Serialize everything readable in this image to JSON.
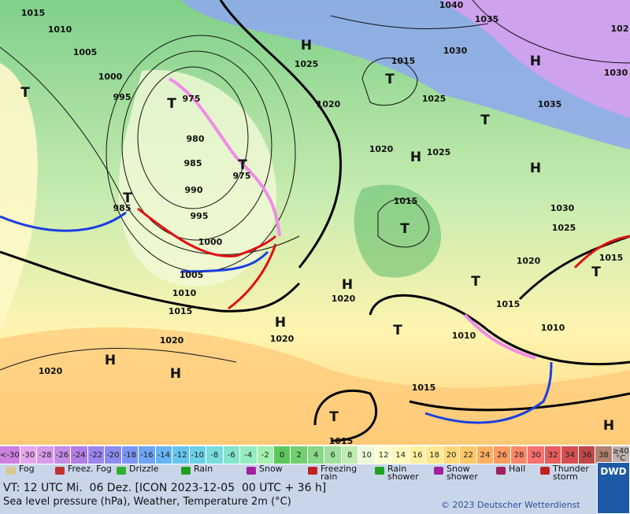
{
  "map": {
    "isobar_labels": [
      "1015",
      "1010",
      "1005",
      "1000",
      "995",
      "975",
      "980",
      "985",
      "990",
      "995",
      "1000",
      "1005",
      "1010",
      "1015",
      "985",
      "975",
      "1020",
      "1025",
      "1040",
      "1035",
      "1030",
      "1015",
      "1025",
      "1020",
      "1025",
      "1015",
      "1030",
      "1025",
      "1035",
      "1030",
      "1020",
      "1015",
      "1015",
      "1010",
      "1010",
      "1020",
      "1020",
      "1020",
      "1020",
      "1015",
      "1015",
      "102"
    ],
    "centers": [
      "H",
      "H",
      "H",
      "H",
      "H",
      "H",
      "H",
      "H",
      "H",
      "T",
      "T",
      "T",
      "T",
      "T",
      "T",
      "T",
      "T",
      "T",
      "T",
      "T"
    ]
  },
  "temperature_scale": [
    {
      "label": "<-30",
      "color": "#cf7fe0"
    },
    {
      "label": "-30",
      "color": "#e6a6ef"
    },
    {
      "label": "-28",
      "color": "#d89ae8"
    },
    {
      "label": "-26",
      "color": "#c48ce6"
    },
    {
      "label": "-24",
      "color": "#b07ee6"
    },
    {
      "label": "-22",
      "color": "#9a86f0"
    },
    {
      "label": "-20",
      "color": "#8a8cf0"
    },
    {
      "label": "-18",
      "color": "#7a96f4"
    },
    {
      "label": "-16",
      "color": "#6ea4f4"
    },
    {
      "label": "-14",
      "color": "#66b4f4"
    },
    {
      "label": "-12",
      "color": "#66c4f0"
    },
    {
      "label": "-10",
      "color": "#6cd0e8"
    },
    {
      "label": "-8",
      "color": "#78dcdc"
    },
    {
      "label": "-6",
      "color": "#84e4cc"
    },
    {
      "label": "-4",
      "color": "#94ecc0"
    },
    {
      "label": "-2",
      "color": "#a4f0b0"
    },
    {
      "label": "0",
      "color": "#5cc85c"
    },
    {
      "label": "2",
      "color": "#70d070"
    },
    {
      "label": "4",
      "color": "#88d888"
    },
    {
      "label": "6",
      "color": "#a0e0a0"
    },
    {
      "label": "8",
      "color": "#c0ecb0"
    },
    {
      "label": "10",
      "color": "#ecf8d8"
    },
    {
      "label": "12",
      "color": "#ffffd0"
    },
    {
      "label": "14",
      "color": "#fff8b8"
    },
    {
      "label": "16",
      "color": "#fff0a0"
    },
    {
      "label": "18",
      "color": "#ffe890"
    },
    {
      "label": "20",
      "color": "#ffd878"
    },
    {
      "label": "22",
      "color": "#ffc868"
    },
    {
      "label": "24",
      "color": "#ffb060"
    },
    {
      "label": "26",
      "color": "#ff9c60"
    },
    {
      "label": "28",
      "color": "#ff8868"
    },
    {
      "label": "30",
      "color": "#f87070"
    },
    {
      "label": "32",
      "color": "#e85c5c"
    },
    {
      "label": "34",
      "color": "#d45050"
    },
    {
      "label": "36",
      "color": "#c04848"
    },
    {
      "label": "38",
      "color": "#b08070"
    },
    {
      "label": "≥40 °C",
      "color": "#c0b0b0"
    }
  ],
  "weather_legend": [
    {
      "label": "Fog",
      "color": "#d8c890"
    },
    {
      "label": "Freez. Fog",
      "color": "#c03030"
    },
    {
      "label": "Drizzle",
      "color": "#30b030"
    },
    {
      "label": "Rain",
      "color": "#20a020"
    },
    {
      "label": "Snow",
      "color": "#a020a0"
    },
    {
      "label": "Freezing rain",
      "color": "#c02020"
    },
    {
      "label": "Rain shower",
      "color": "#20a020"
    },
    {
      "label": "Snow shower",
      "color": "#a020a0"
    },
    {
      "label": "Hail",
      "color": "#a02060"
    },
    {
      "label": "Thunder storm",
      "color": "#c02020"
    }
  ],
  "footer": {
    "valid_time": "VT: 12 UTC Mi.  06 Dez. [ICON 2023-12-05  00 UTC + 36 h]",
    "description": "Sea level pressure (hPa), Weather, Temperature 2m (°C)",
    "copyright": "© 2023 Deutscher Wetterdienst",
    "logo": "DWD"
  }
}
